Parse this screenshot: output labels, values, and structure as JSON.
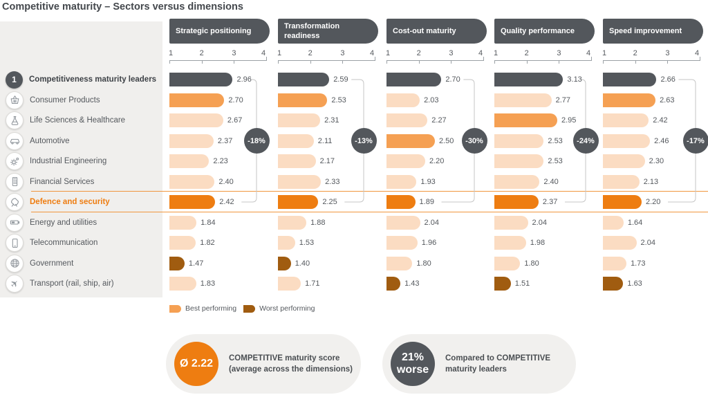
{
  "title": "Competitive maturity – Sectors versus dimensions",
  "colors": {
    "leader": "#53575c",
    "best": "#f5a053",
    "normal": "#fbdcc2",
    "highlight": "#ee7d11",
    "worst": "#a05c10",
    "badge_bg": "#53575c",
    "separator_line": "#f0953c",
    "bracket_line": "#c6c6c6",
    "panel_bg": "#f0efed"
  },
  "axis_ticks": [
    "1",
    "2",
    "3",
    "4"
  ],
  "sectors": [
    {
      "label": "Competitiveness maturity leaders",
      "icon": "rank-1-badge"
    },
    {
      "label": "Consumer Products",
      "icon": "basket-icon"
    },
    {
      "label": "Life Sciences & Healthcare",
      "icon": "flask-icon"
    },
    {
      "label": "Automotive",
      "icon": "car-icon"
    },
    {
      "label": "Industrial Engineering",
      "icon": "gears-icon"
    },
    {
      "label": "Financial Services",
      "icon": "calculator-icon"
    },
    {
      "label": "Defence and security",
      "icon": "satellite-dish-icon"
    },
    {
      "label": "Energy and utilities",
      "icon": "battery-icon"
    },
    {
      "label": "Telecommunication",
      "icon": "phone-icon"
    },
    {
      "label": "Government",
      "icon": "globe-icon"
    },
    {
      "label": "Transport (rail, ship, air)",
      "icon": "plane-icon"
    }
  ],
  "chart_data": {
    "type": "bar",
    "title": "Competitive maturity – Sectors versus dimensions",
    "xlim": [
      1,
      4
    ],
    "axis_ticks": [
      1,
      2,
      3,
      4
    ],
    "categories": [
      "Competitiveness maturity leaders",
      "Consumer Products",
      "Life Sciences & Healthcare",
      "Automotive",
      "Industrial Engineering",
      "Financial Services",
      "Defence and security",
      "Energy and utilities",
      "Telecommunication",
      "Government",
      "Transport (rail, ship, air)"
    ],
    "series": [
      {
        "name": "Strategic positioning",
        "values": [
          2.96,
          2.7,
          2.67,
          2.37,
          2.23,
          2.4,
          2.42,
          1.84,
          1.82,
          1.47,
          1.83
        ],
        "gap_vs_leader": "-18%"
      },
      {
        "name": "Transformation readiness",
        "values": [
          2.59,
          2.53,
          2.31,
          2.11,
          2.17,
          2.33,
          2.25,
          1.88,
          1.53,
          1.4,
          1.71
        ],
        "gap_vs_leader": "-13%"
      },
      {
        "name": "Cost-out maturity",
        "values": [
          2.7,
          2.03,
          2.27,
          2.5,
          2.2,
          1.93,
          1.89,
          2.04,
          1.96,
          1.8,
          1.43
        ],
        "gap_vs_leader": "-30%"
      },
      {
        "name": "Quality performance",
        "values": [
          3.13,
          2.77,
          2.95,
          2.53,
          2.53,
          2.4,
          2.37,
          2.04,
          1.98,
          1.8,
          1.51
        ],
        "gap_vs_leader": "-24%"
      },
      {
        "name": "Speed improvement",
        "values": [
          2.66,
          2.63,
          2.42,
          2.46,
          2.3,
          2.13,
          2.2,
          1.64,
          2.04,
          1.73,
          1.63
        ],
        "gap_vs_leader": "-17%"
      }
    ],
    "highlighted_category": "Defence and security",
    "color_rules": "leader row dark gray; best performing (max non-leader) medium orange; worst performing (min non-leader) dark brown; highlighted sector bright orange; others light peach"
  },
  "legend": [
    {
      "label": "Best performing",
      "color": "#f5a053"
    },
    {
      "label": "Worst performing",
      "color": "#a05c10"
    }
  ],
  "summary": [
    {
      "circle_lines": [
        "Ø 2.22"
      ],
      "circle_color": "#ee7d11",
      "text_lines": [
        "COMPETITIVE maturity score",
        "(average across the dimensions)"
      ]
    },
    {
      "circle_lines": [
        "21%",
        "worse"
      ],
      "circle_color": "#53575c",
      "text_lines": [
        "Compared to COMPETITIVE",
        "maturity leaders"
      ]
    }
  ]
}
